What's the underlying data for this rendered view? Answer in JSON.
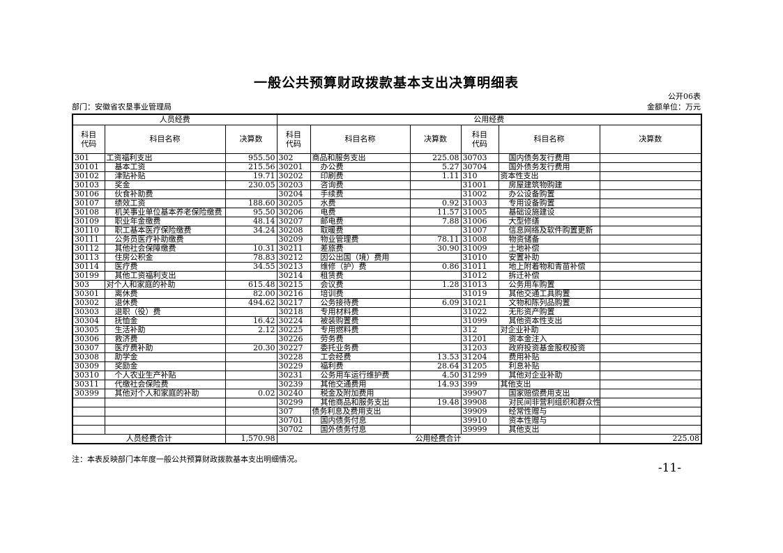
{
  "page": {
    "title": "一般公共预算财政拨款基本支出决算明细表",
    "table_code": "公开06表",
    "department": "部门：安徽省农垦事业管理局",
    "unit": "金额单位：万元",
    "note": "注：本表反映部门本年度一般公共预算财政拨款基本支出明细情况。",
    "page_number": "-11-"
  },
  "table": {
    "groups": [
      "人员经费",
      "公用经费"
    ],
    "column_headers": [
      "科目代码",
      "科目名称",
      "决算数"
    ],
    "rows": [
      [
        "301",
        "工资福利支出",
        "955.50",
        "302",
        "商品和服务支出",
        "225.08",
        "30703",
        "国内债务发行费用",
        ""
      ],
      [
        "30101",
        "基本工资",
        "215.56",
        "30201",
        "办公费",
        "5.27",
        "30704",
        "国外债务发行费用",
        ""
      ],
      [
        "30102",
        "津贴补贴",
        "19.71",
        "30202",
        "印刷费",
        "1.11",
        "310",
        "资本性支出",
        ""
      ],
      [
        "30103",
        "奖金",
        "230.05",
        "30203",
        "咨询费",
        "",
        "31001",
        "房屋建筑物购建",
        ""
      ],
      [
        "30106",
        "伙食补助费",
        "",
        "30204",
        "手续费",
        "",
        "31002",
        "办公设备购置",
        ""
      ],
      [
        "30107",
        "绩效工资",
        "188.60",
        "30205",
        "水费",
        "0.92",
        "31003",
        "专用设备购置",
        ""
      ],
      [
        "30108",
        "机关事业单位基本养老保险缴费",
        "95.50",
        "30206",
        "电费",
        "11.57",
        "31005",
        "基础设施建设",
        ""
      ],
      [
        "30109",
        "职业年金缴费",
        "48.14",
        "30207",
        "邮电费",
        "7.88",
        "31006",
        "大型修缮",
        ""
      ],
      [
        "30110",
        "职工基本医疗保险缴费",
        "34.24",
        "30208",
        "取暖费",
        "",
        "31007",
        "信息网络及软件购置更新",
        ""
      ],
      [
        "30111",
        "公务员医疗补助缴费",
        "",
        "30209",
        "物业管理费",
        "78.11",
        "31008",
        "物资储备",
        ""
      ],
      [
        "30112",
        "其他社会保障缴费",
        "10.31",
        "30211",
        "差旅费",
        "30.90",
        "31009",
        "土地补偿",
        ""
      ],
      [
        "30113",
        "住房公积金",
        "78.83",
        "30212",
        "因公出国（境）费用",
        "",
        "31010",
        "安置补助",
        ""
      ],
      [
        "30114",
        "医疗费",
        "34.55",
        "30213",
        "维修（护）费",
        "0.86",
        "31011",
        "地上附着物和青苗补偿",
        ""
      ],
      [
        "30199",
        "其他工资福利支出",
        "",
        "30214",
        "租赁费",
        "",
        "31012",
        "拆迁补偿",
        ""
      ],
      [
        "303",
        "对个人和家庭的补助",
        "615.48",
        "30215",
        "会议费",
        "1.28",
        "31013",
        "公务用车购置",
        ""
      ],
      [
        "30301",
        "离休费",
        "82.00",
        "30216",
        "培训费",
        "",
        "31019",
        "其他交通工具购置",
        ""
      ],
      [
        "30302",
        "退休费",
        "494.62",
        "30217",
        "公务接待费",
        "6.09",
        "31021",
        "文物和陈列品购置",
        ""
      ],
      [
        "30303",
        "退职（役）费",
        "",
        "30218",
        "专用材料费",
        "",
        "31022",
        "无形资产购置",
        ""
      ],
      [
        "30304",
        "抚恤金",
        "16.42",
        "30224",
        "被装购置费",
        "",
        "31099",
        "其他资本性支出",
        ""
      ],
      [
        "30305",
        "生活补助",
        "2.12",
        "30225",
        "专用燃料费",
        "",
        "312",
        "对企业补助",
        ""
      ],
      [
        "30306",
        "救济费",
        "",
        "30226",
        "劳务费",
        "",
        "31201",
        "资本金注入",
        ""
      ],
      [
        "30307",
        "医疗费补助",
        "20.30",
        "30227",
        "委托业务费",
        "",
        "31203",
        "政府投资基金股权投资",
        ""
      ],
      [
        "30308",
        "助学金",
        "",
        "30228",
        "工会经费",
        "13.53",
        "31204",
        "费用补贴",
        ""
      ],
      [
        "30309",
        "奖励金",
        "",
        "30229",
        "福利费",
        "28.64",
        "31205",
        "利息补贴",
        ""
      ],
      [
        "30310",
        "个人农业生产补贴",
        "",
        "30231",
        "公务用车运行维护费",
        "4.50",
        "31299",
        "其他对企业补助",
        ""
      ],
      [
        "30311",
        "代缴社会保险费",
        "",
        "30239",
        "其他交通费用",
        "14.93",
        "399",
        "其他支出",
        ""
      ],
      [
        "30399",
        "其他对个人和家庭的补助",
        "0.02",
        "30240",
        "税金及附加费用",
        "",
        "39907",
        "国家赔偿费用支出",
        ""
      ],
      [
        "",
        "",
        "",
        "30299",
        "其他商品和服务支出",
        "19.48",
        "39908",
        "对民间非营利组织和群众性",
        ""
      ],
      [
        "",
        "",
        "",
        "307",
        "债务利息及费用支出",
        "",
        "39909",
        "经常性赠与",
        ""
      ],
      [
        "",
        "",
        "",
        "30701",
        "国内债务付息",
        "",
        "39910",
        "资本性赠与",
        ""
      ],
      [
        "",
        "",
        "",
        "30702",
        "国外债务付息",
        "",
        "39999",
        "其他支出",
        ""
      ]
    ],
    "footer": {
      "personnel_total_label": "人员经费合计",
      "personnel_total": "1,570.98",
      "public_total_label": "公用经费合计",
      "public_total": "225.08"
    }
  }
}
